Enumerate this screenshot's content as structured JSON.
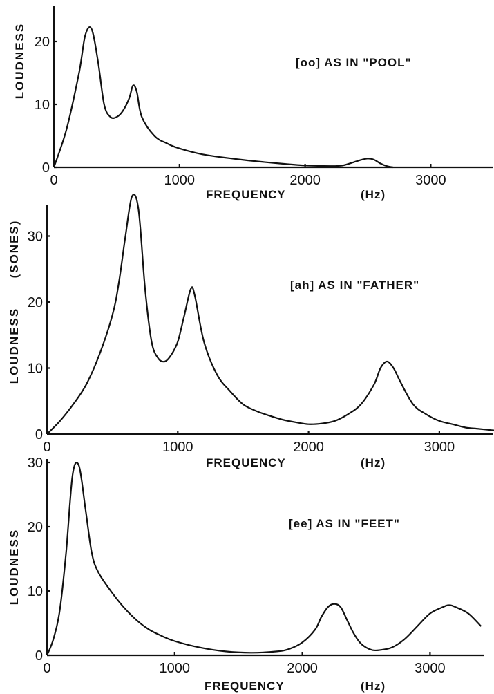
{
  "chart_data": [
    {
      "type": "line",
      "title": "[oo] AS IN \"POOL\"",
      "xlabel": "FREQUENCY",
      "xunit": "(Hz)",
      "ylabel": "LOUDNESS",
      "xlim": [
        0,
        3400
      ],
      "ylim": [
        0,
        24
      ],
      "x_ticks": [
        "0",
        "1000",
        "2000",
        "3000"
      ],
      "y_ticks": [
        "0",
        "10",
        "20"
      ],
      "x": [
        0,
        100,
        200,
        250,
        300,
        350,
        400,
        450,
        500,
        550,
        600,
        630,
        660,
        700,
        800,
        900,
        1000,
        1200,
        1500,
        1800,
        2000,
        2200,
        2300,
        2400,
        2450,
        2500,
        2550,
        2600,
        2650,
        2700
      ],
      "y": [
        0,
        6,
        15,
        21,
        22,
        17,
        10,
        8,
        8,
        9,
        11,
        13,
        12,
        8,
        5,
        3.8,
        3,
        2,
        1.2,
        0.6,
        0.3,
        0.2,
        0.3,
        0.9,
        1.2,
        1.4,
        1.2,
        0.6,
        0.2,
        0
      ]
    },
    {
      "type": "line",
      "title": "[ah] AS IN \"FATHER\"",
      "xlabel": "FREQUENCY",
      "xunit": "(Hz)",
      "ylabel": "LOUDNESS",
      "ylabel2": "(SONES)",
      "xlim": [
        0,
        3450
      ],
      "ylim": [
        0,
        36
      ],
      "x_ticks": [
        "0",
        "1000",
        "2000",
        "3000"
      ],
      "y_ticks": [
        "0",
        "10",
        "20",
        "30"
      ],
      "x": [
        0,
        100,
        200,
        300,
        400,
        500,
        550,
        600,
        650,
        700,
        750,
        800,
        850,
        900,
        950,
        1000,
        1050,
        1100,
        1130,
        1200,
        1300,
        1400,
        1500,
        1600,
        1700,
        1800,
        1900,
        2000,
        2100,
        2200,
        2300,
        2400,
        2500,
        2550,
        2600,
        2650,
        2700,
        2800,
        2900,
        3000,
        3100,
        3200,
        3300,
        3400,
        3450
      ],
      "y": [
        0,
        2,
        4.5,
        7.5,
        12,
        18,
        23,
        30,
        36,
        34,
        22,
        14,
        11.5,
        11,
        12,
        14,
        18,
        22,
        21,
        14,
        9,
        6.5,
        4.5,
        3.5,
        2.8,
        2.2,
        1.8,
        1.5,
        1.6,
        2,
        3,
        4.5,
        7.5,
        10,
        11,
        10,
        8,
        4.5,
        3,
        2,
        1.5,
        1,
        0.8,
        0.6,
        0.5
      ]
    },
    {
      "type": "line",
      "title": "[ee] AS IN \"FEET\"",
      "xlabel": "FREQUENCY",
      "xunit": "(Hz)",
      "ylabel": "LOUDNESS",
      "xlim": [
        0,
        3400
      ],
      "ylim": [
        0,
        30
      ],
      "x_ticks": [
        "0",
        "1000",
        "2000",
        "3000"
      ],
      "y_ticks": [
        "0",
        "10",
        "20",
        "30"
      ],
      "x": [
        0,
        50,
        100,
        150,
        200,
        250,
        300,
        350,
        400,
        500,
        600,
        700,
        800,
        900,
        1000,
        1200,
        1400,
        1600,
        1800,
        1900,
        2000,
        2100,
        2150,
        2200,
        2250,
        2300,
        2350,
        2400,
        2450,
        2500,
        2550,
        2600,
        2700,
        2800,
        2900,
        3000,
        3100,
        3150,
        3200,
        3300,
        3400
      ],
      "y": [
        0,
        2.5,
        7,
        16,
        28,
        29.5,
        23,
        16,
        13,
        10,
        7.5,
        5.5,
        4,
        3,
        2.2,
        1.2,
        0.6,
        0.4,
        0.6,
        1,
        2,
        4,
        6,
        7.5,
        8,
        7.5,
        5.5,
        3.5,
        2,
        1.2,
        0.8,
        0.8,
        1.2,
        2.5,
        4.5,
        6.5,
        7.5,
        7.8,
        7.5,
        6.5,
        4.5
      ]
    }
  ]
}
